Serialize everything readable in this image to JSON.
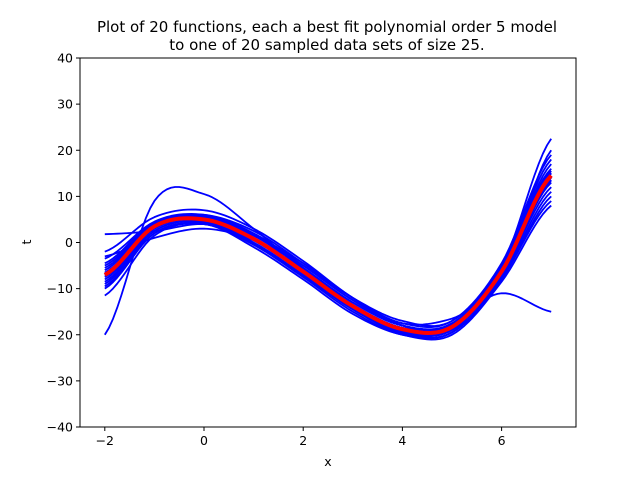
{
  "chart_data": {
    "type": "line",
    "title_line1": "Plot of 20 functions, each a best fit polynomial order 5 model",
    "title_line2": "to one of 20 sampled data sets of size 25.",
    "xlabel": "x",
    "ylabel": "t",
    "xlim": [
      -2.5,
      7.5
    ],
    "ylim": [
      -40,
      40
    ],
    "xticks": [
      -2,
      0,
      2,
      4,
      6
    ],
    "yticks": [
      -40,
      -30,
      -20,
      -10,
      0,
      10,
      20,
      30,
      40
    ],
    "grid": false,
    "x": [
      -2,
      -1,
      0,
      1,
      2,
      3,
      4,
      5,
      6,
      7
    ],
    "series": [
      {
        "color": "#0000ff",
        "values": [
          -6.5,
          3.5,
          5.0,
          1.0,
          -6.0,
          -13.5,
          -18.5,
          -18.0,
          -6.0,
          15.0
        ]
      },
      {
        "color": "#0000ff",
        "values": [
          -7.5,
          3.0,
          4.8,
          0.5,
          -6.5,
          -14.0,
          -19.0,
          -18.5,
          -6.5,
          13.0
        ]
      },
      {
        "color": "#0000ff",
        "values": [
          -5.5,
          4.0,
          5.5,
          1.5,
          -5.5,
          -13.0,
          -18.0,
          -17.5,
          -5.5,
          17.0
        ]
      },
      {
        "color": "#0000ff",
        "values": [
          -8.5,
          2.5,
          4.5,
          0.0,
          -7.0,
          -14.5,
          -19.5,
          -19.0,
          -7.0,
          12.0
        ]
      },
      {
        "color": "#0000ff",
        "values": [
          -4.5,
          4.5,
          6.0,
          2.0,
          -5.0,
          -12.5,
          -17.5,
          -17.0,
          -4.5,
          19.0
        ]
      },
      {
        "color": "#0000ff",
        "values": [
          -3.5,
          4.5,
          6.0,
          2.5,
          -4.5,
          -12.0,
          -17.0,
          -17.0,
          -5.0,
          18.0
        ]
      },
      {
        "color": "#0000ff",
        "values": [
          -10.0,
          2.0,
          4.0,
          -0.5,
          -7.5,
          -15.0,
          -20.0,
          -19.5,
          -8.0,
          10.0
        ]
      },
      {
        "color": "#0000ff",
        "values": [
          -11.5,
          1.5,
          4.0,
          -1.0,
          -8.0,
          -15.5,
          -20.0,
          -20.0,
          -8.5,
          8.0
        ]
      },
      {
        "color": "#0000ff",
        "values": [
          -9.0,
          2.5,
          4.5,
          0.5,
          -6.5,
          -14.0,
          -19.0,
          -18.5,
          -6.0,
          14.0
        ]
      },
      {
        "color": "#0000ff",
        "values": [
          -6.0,
          4.0,
          5.5,
          1.0,
          -6.0,
          -13.5,
          -18.5,
          -18.0,
          -5.0,
          16.0
        ]
      },
      {
        "color": "#0000ff",
        "values": [
          -7.0,
          3.5,
          5.0,
          0.5,
          -6.5,
          -14.0,
          -19.0,
          -18.5,
          -5.5,
          15.5
        ]
      },
      {
        "color": "#0000ff",
        "values": [
          -5.0,
          4.2,
          5.8,
          1.8,
          -5.5,
          -13.0,
          -18.0,
          -17.8,
          -6.0,
          14.5
        ]
      },
      {
        "color": "#0000ff",
        "values": [
          -8.0,
          3.0,
          5.0,
          1.0,
          -6.0,
          -13.5,
          -18.8,
          -18.5,
          -7.5,
          11.0
        ]
      },
      {
        "color": "#0000ff",
        "values": [
          -6.8,
          3.8,
          5.2,
          0.8,
          -6.2,
          -13.8,
          -18.6,
          -18.0,
          -6.2,
          15.0
        ]
      },
      {
        "color": "#0000ff",
        "values": [
          -7.2,
          3.2,
          5.0,
          0.8,
          -6.5,
          -14.0,
          -19.2,
          -18.8,
          -6.8,
          13.5
        ]
      },
      {
        "color": "#0000ff",
        "values": [
          -3.0,
          1.0,
          3.0,
          0.5,
          -5.0,
          -12.5,
          -18.0,
          -18.5,
          -5.5,
          22.5
        ]
      },
      {
        "color": "#0000ff",
        "values": [
          -2.0,
          5.5,
          7.0,
          3.0,
          -4.0,
          -12.0,
          -17.5,
          -16.5,
          -11.0,
          -15.0
        ]
      },
      {
        "color": "#0000ff",
        "values": [
          1.8,
          2.5,
          4.0,
          1.5,
          -4.5,
          -12.0,
          -18.0,
          -19.0,
          -7.5,
          20.0
        ]
      },
      {
        "color": "#0000ff",
        "values": [
          -20.0,
          9.0,
          10.5,
          3.0,
          -6.0,
          -14.0,
          -19.5,
          -19.5,
          -7.5,
          13.5
        ]
      },
      {
        "color": "#0000ff",
        "values": [
          -9.5,
          2.0,
          4.2,
          -0.2,
          -7.2,
          -14.5,
          -19.8,
          -19.5,
          -7.8,
          9.0
        ]
      }
    ],
    "mean": {
      "color": "#ff0000",
      "values": [
        -7.0,
        3.5,
        5.0,
        0.8,
        -6.3,
        -13.8,
        -18.8,
        -18.3,
        -6.3,
        14.5
      ]
    }
  }
}
